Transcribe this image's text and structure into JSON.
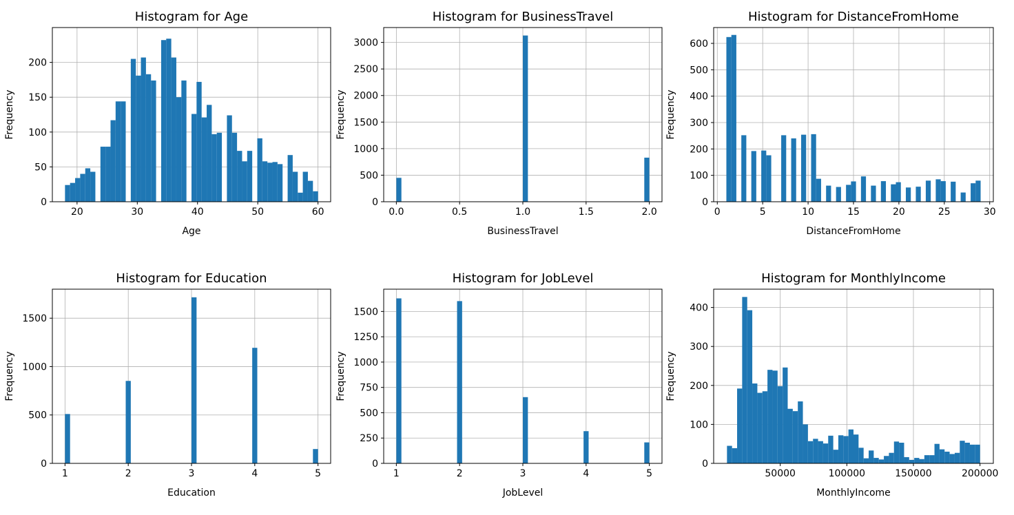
{
  "chart_data": [
    {
      "type": "bar",
      "title": "Histogram for Age",
      "xlabel": "Age",
      "ylabel": "Frequency",
      "color": "#1f77b4",
      "xlim": [
        15.9,
        62.1
      ],
      "ylim": [
        0,
        250
      ],
      "xticks": [
        20,
        30,
        40,
        50,
        60
      ],
      "yticks": [
        0,
        50,
        100,
        150,
        200
      ],
      "bin_range": [
        18,
        60
      ],
      "counts": [
        24,
        27,
        34,
        40,
        48,
        43,
        0,
        79,
        79,
        117,
        144,
        144,
        0,
        205,
        181,
        207,
        183,
        174,
        0,
        232,
        234,
        207,
        150,
        174,
        0,
        126,
        172,
        121,
        139,
        97,
        99,
        0,
        124,
        99,
        73,
        58,
        73,
        0,
        91,
        58,
        56,
        57,
        54,
        0,
        67,
        43,
        13,
        43,
        30,
        15
      ]
    },
    {
      "type": "bar",
      "title": "Histogram for BusinessTravel",
      "xlabel": "BusinessTravel",
      "ylabel": "Frequency",
      "color": "#1f77b4",
      "xlim": [
        -0.1,
        2.1
      ],
      "ylim": [
        0,
        3280
      ],
      "xticks": [
        "0.0",
        "0.5",
        "1.0",
        "1.5",
        "2.0"
      ],
      "yticks": [
        0,
        500,
        1000,
        1500,
        2000,
        2500,
        3000
      ],
      "bin_range": [
        0,
        2
      ],
      "nbins": 50,
      "bars": [
        {
          "bin": 0,
          "count": 450
        },
        {
          "bin": 25,
          "count": 3130
        },
        {
          "bin": 49,
          "count": 830
        }
      ]
    },
    {
      "type": "bar",
      "title": "Histogram for DistanceFromHome",
      "xlabel": "DistanceFromHome",
      "ylabel": "Frequency",
      "color": "#1f77b4",
      "xlim": [
        -0.4,
        30.4
      ],
      "ylim": [
        0,
        660
      ],
      "xticks": [
        0,
        5,
        10,
        15,
        20,
        25,
        30
      ],
      "yticks": [
        0,
        100,
        200,
        300,
        400,
        500,
        600
      ],
      "bin_range": [
        1,
        29
      ],
      "counts": [
        624,
        632,
        0,
        252,
        0,
        192,
        0,
        194,
        176,
        0,
        0,
        252,
        0,
        240,
        0,
        254,
        0,
        256,
        87,
        0,
        61,
        0,
        56,
        0,
        64,
        77,
        0,
        96,
        0,
        61,
        0,
        78,
        0,
        66,
        74,
        0,
        54,
        0,
        57,
        0,
        80,
        0,
        85,
        78,
        0,
        76,
        0,
        35,
        0,
        70,
        80
      ]
    },
    {
      "type": "bar",
      "title": "Histogram for Education",
      "xlabel": "Education",
      "ylabel": "Frequency",
      "color": "#1f77b4",
      "xlim": [
        0.8,
        5.2
      ],
      "ylim": [
        0,
        1800
      ],
      "xticks": [
        1,
        2,
        3,
        4,
        5
      ],
      "yticks": [
        0,
        500,
        1000,
        1500
      ],
      "bin_range": [
        1,
        5
      ],
      "nbins": 50,
      "bars": [
        {
          "bin": 0,
          "count": 510
        },
        {
          "bin": 12,
          "count": 852
        },
        {
          "bin": 25,
          "count": 1716
        },
        {
          "bin": 37,
          "count": 1194
        },
        {
          "bin": 49,
          "count": 148
        }
      ]
    },
    {
      "type": "bar",
      "title": "Histogram for JobLevel",
      "xlabel": "JobLevel",
      "ylabel": "Frequency",
      "color": "#1f77b4",
      "xlim": [
        0.8,
        5.2
      ],
      "ylim": [
        0,
        1720
      ],
      "xticks": [
        1,
        2,
        3,
        4,
        5
      ],
      "yticks": [
        0,
        250,
        500,
        750,
        1000,
        1250,
        1500
      ],
      "bin_range": [
        1,
        5
      ],
      "nbins": 50,
      "bars": [
        {
          "bin": 0,
          "count": 1629
        },
        {
          "bin": 12,
          "count": 1602
        },
        {
          "bin": 25,
          "count": 654
        },
        {
          "bin": 37,
          "count": 318
        },
        {
          "bin": 49,
          "count": 207
        }
      ]
    },
    {
      "type": "bar",
      "title": "Histogram for MonthlyIncome",
      "xlabel": "MonthlyIncome",
      "ylabel": "Frequency",
      "color": "#1f77b4",
      "xlim": [
        0,
        210000
      ],
      "ylim": [
        0,
        447
      ],
      "xticks": [
        50000,
        100000,
        150000,
        200000
      ],
      "yticks": [
        0,
        100,
        200,
        300,
        400
      ],
      "bin_range": [
        10000,
        200000
      ],
      "counts": [
        45,
        39,
        192,
        427,
        393,
        205,
        181,
        185,
        240,
        238,
        198,
        246,
        140,
        134,
        159,
        100,
        57,
        63,
        57,
        51,
        71,
        35,
        72,
        70,
        87,
        74,
        40,
        13,
        33,
        14,
        10,
        19,
        27,
        56,
        53,
        16,
        9,
        14,
        11,
        21,
        21,
        50,
        36,
        30,
        24,
        27,
        58,
        53,
        48,
        48
      ]
    }
  ]
}
